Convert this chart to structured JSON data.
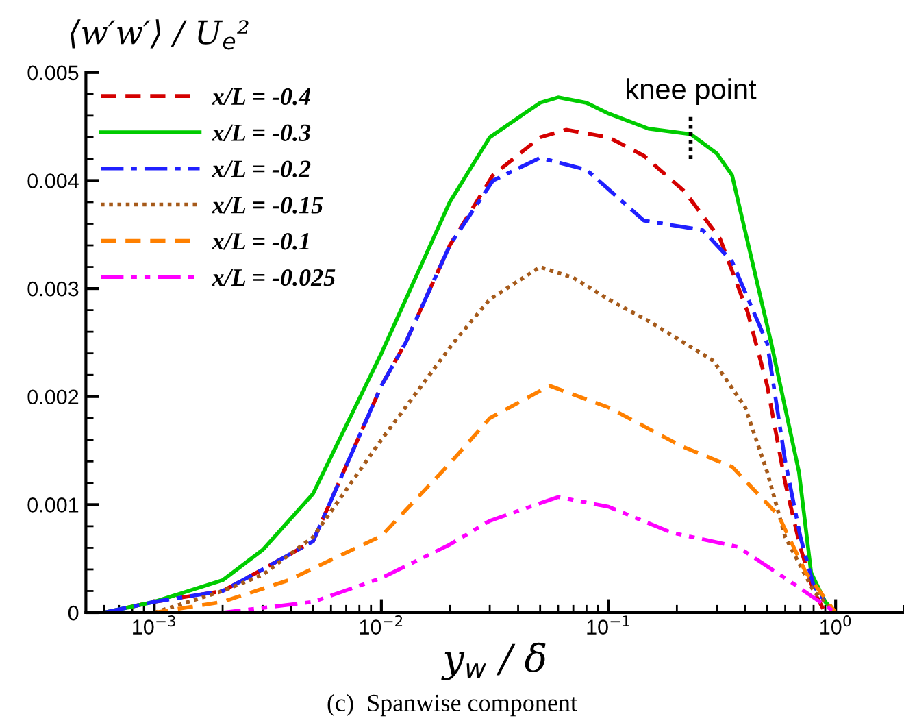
{
  "chart_data": {
    "type": "line",
    "log": "x",
    "ylabel": "⟨w′w′⟩ / U$_{e}$²",
    "xlabel": "y$_{w}$ / δ",
    "xlim": [
      0.0005,
      2
    ],
    "xticks": [
      {
        "value": 0.001,
        "label": "10$^{−3}$"
      },
      {
        "value": 0.01,
        "label": "10$^{−2}$"
      },
      {
        "value": 0.1,
        "label": "10$^{−1}$"
      },
      {
        "value": 1,
        "label": "10$^{0}$"
      }
    ],
    "ylim": [
      0,
      0.005
    ],
    "yticks": [
      {
        "value": 0,
        "label": "0"
      },
      {
        "value": 0.001,
        "label": "0.001"
      },
      {
        "value": 0.002,
        "label": "0.002"
      },
      {
        "value": 0.003,
        "label": "0.003"
      },
      {
        "value": 0.004,
        "label": "0.004"
      },
      {
        "value": 0.005,
        "label": "0.005"
      }
    ],
    "grid": false,
    "legend": "top left",
    "marker": "none",
    "annotations": [
      {
        "text": "knee point",
        "x": 0.23,
        "y": 0.0044
      },
      "(c)  Spanwise component"
    ],
    "series": [
      {
        "name": "x/L = -0.4",
        "color": "#d40000",
        "line_style": "dashed",
        "x": [
          0.0006,
          0.001,
          0.002,
          0.003,
          0.005,
          0.01,
          0.0128,
          0.02,
          0.031,
          0.05,
          0.065,
          0.1,
          0.143,
          0.216,
          0.31,
          0.41,
          0.5,
          0.6,
          0.7,
          0.8,
          0.9,
          1.0,
          1.2,
          2
        ],
        "values": [
          0.0,
          0.0001,
          0.0002,
          0.0004,
          0.00066,
          0.0021,
          0.0025,
          0.0034,
          0.00405,
          0.0044,
          0.00447,
          0.0044,
          0.00423,
          0.0039,
          0.00346,
          0.00278,
          0.0021,
          0.0012,
          0.0006,
          0.0002,
          0.0,
          0.0,
          0.0,
          0.0
        ]
      },
      {
        "name": "x/L = -0.3",
        "color": "#00cc00",
        "line_style": "solid",
        "x": [
          0.0006,
          0.001,
          0.002,
          0.003,
          0.005,
          0.01,
          0.02,
          0.03,
          0.05,
          0.06,
          0.08,
          0.1,
          0.15,
          0.23,
          0.3,
          0.35,
          0.52,
          0.69,
          0.78,
          0.9,
          1.0,
          1.2,
          2
        ],
        "values": [
          0.0,
          0.0001,
          0.0003,
          0.00058,
          0.0011,
          0.0024,
          0.0038,
          0.0044,
          0.00472,
          0.00477,
          0.00472,
          0.00462,
          0.00448,
          0.00443,
          0.00425,
          0.00405,
          0.0025,
          0.0013,
          0.00037,
          0.0001,
          0.0,
          0.0,
          0.0
        ]
      },
      {
        "name": "x/L = -0.2",
        "color": "#2020ff",
        "line_style": "dashdot",
        "x": [
          0.0006,
          0.001,
          0.002,
          0.003,
          0.005,
          0.01,
          0.0128,
          0.02,
          0.031,
          0.05,
          0.08,
          0.143,
          0.26,
          0.35,
          0.5,
          0.6,
          0.7,
          0.8,
          0.9,
          1.0
        ],
        "values": [
          0.0,
          0.0001,
          0.0002,
          0.0004,
          0.00066,
          0.0021,
          0.0025,
          0.0034,
          0.004,
          0.00421,
          0.0041,
          0.00363,
          0.00354,
          0.00325,
          0.00249,
          0.0014,
          0.0007,
          0.00025,
          0.0001,
          0.0
        ]
      },
      {
        "name": "x/L = -0.15",
        "color": "#a65a1a",
        "line_style": "dotted",
        "x": [
          0.0006,
          0.001,
          0.002,
          0.003,
          0.005,
          0.01,
          0.0208,
          0.03,
          0.05,
          0.07,
          0.1,
          0.15,
          0.29,
          0.4,
          0.5,
          0.6,
          0.8,
          1.0,
          1.2,
          2
        ],
        "values": [
          0.0,
          0.0,
          0.0002,
          0.00035,
          0.0007,
          0.0016,
          0.0025,
          0.0029,
          0.0032,
          0.0031,
          0.0029,
          0.0027,
          0.00233,
          0.0019,
          0.0013,
          0.0007,
          0.0002,
          0.0,
          0.0,
          0.0
        ]
      },
      {
        "name": "x/L = -0.1",
        "color": "#ff8000",
        "line_style": "dashed",
        "x": [
          0.0006,
          0.001,
          0.002,
          0.0039,
          0.01,
          0.02,
          0.03,
          0.055,
          0.1,
          0.21,
          0.35,
          0.56,
          0.74,
          1.0,
          1.2,
          2
        ],
        "values": [
          0.0,
          0.0,
          0.0001,
          0.0003,
          0.00071,
          0.00138,
          0.0018,
          0.0021,
          0.0019,
          0.00154,
          0.00135,
          0.0009,
          0.00037,
          0.0,
          0.0,
          0.0
        ]
      },
      {
        "name": "x/L = -0.025",
        "color": "#ff00ff",
        "line_style": "dashdotdot",
        "x": [
          0.0006,
          0.001,
          0.002,
          0.005,
          0.01,
          0.02,
          0.03,
          0.06,
          0.1,
          0.19,
          0.37,
          0.65,
          1.0,
          1.2,
          2
        ],
        "values": [
          0.0,
          0.0,
          0.0,
          0.0001,
          0.00032,
          0.00063,
          0.00085,
          0.00107,
          0.00098,
          0.00074,
          0.00061,
          0.00027,
          0.0,
          0.0,
          0.0
        ]
      }
    ]
  }
}
